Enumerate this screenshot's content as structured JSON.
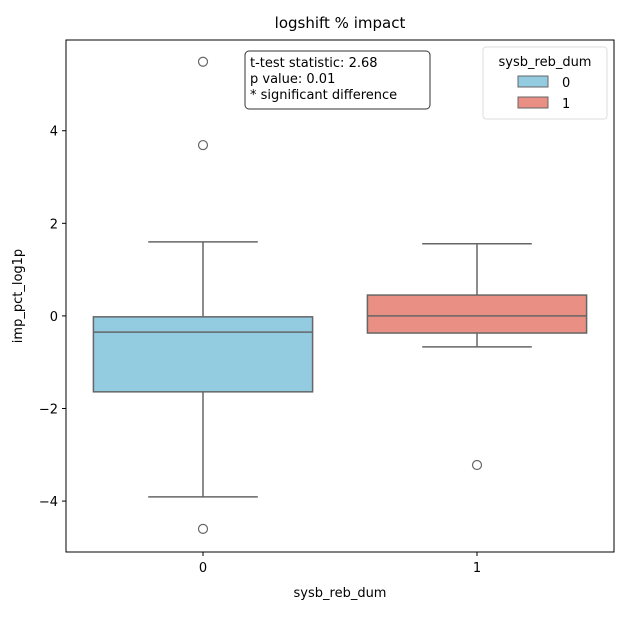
{
  "chart_data": {
    "type": "boxplot",
    "title": "logshift % impact",
    "xlabel": "sysb_reb_dum",
    "ylabel": "imp_pct_log1p",
    "categories": [
      "0",
      "1"
    ],
    "ylim": [
      -5.1,
      5.96
    ],
    "yticks": [
      -4,
      -2,
      0,
      2,
      4
    ],
    "ytick_labels": [
      "−4",
      "−2",
      "0",
      "2",
      "4"
    ],
    "grid": false,
    "boxes": [
      {
        "category": "0",
        "whisker_low": -3.91,
        "q1": -1.64,
        "median": -0.35,
        "q3": -0.02,
        "whisker_high": 1.6,
        "outliers": [
          5.49,
          3.69,
          -4.6
        ],
        "color": "#93cbe1"
      },
      {
        "category": "1",
        "whisker_low": -0.67,
        "q1": -0.37,
        "median": 0.0,
        "q3": 0.45,
        "whisker_high": 1.56,
        "outliers": [
          -3.22
        ],
        "color": "#e98f83"
      }
    ],
    "annotation": [
      "t-test statistic: 2.68",
      "p value: 0.01",
      "* significant difference"
    ],
    "legend": {
      "title": "sysb_reb_dum",
      "placement": "top-right",
      "entries": [
        {
          "label": "0",
          "color": "#93cbe1"
        },
        {
          "label": "1",
          "color": "#e98f83"
        }
      ]
    }
  }
}
